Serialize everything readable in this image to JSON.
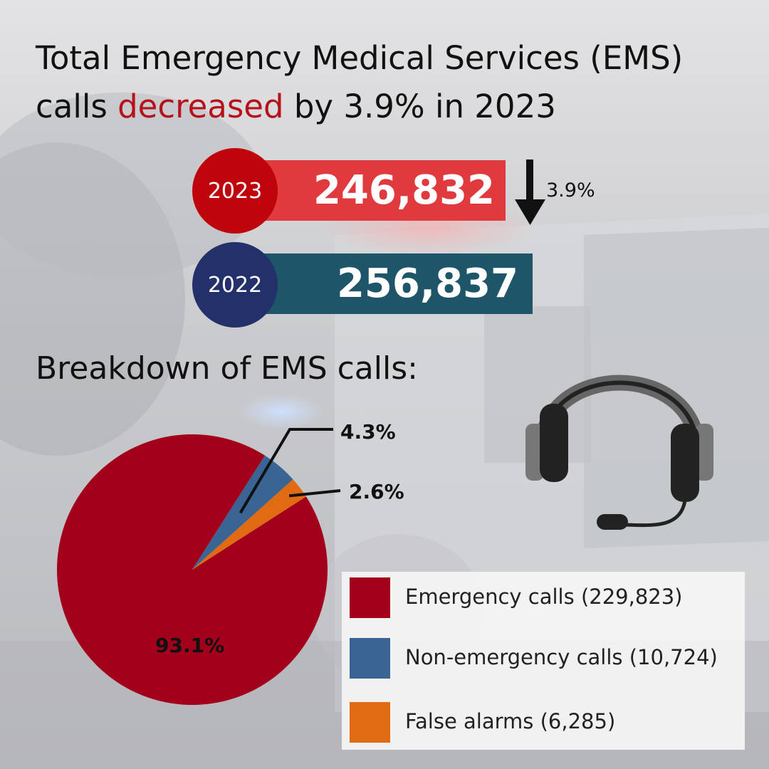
{
  "header": {
    "title_pre": "Total Emergency Medical Services (EMS) calls ",
    "title_highlight": "decreased",
    "title_post": " by 3.9% in 2023"
  },
  "comparison": {
    "items": [
      {
        "year": "2023",
        "value": "246,832",
        "bar_color": "#e03a3e",
        "circle_color": "#c0040c"
      },
      {
        "year": "2022",
        "value": "256,837",
        "bar_color": "#1e5568",
        "circle_color": "#24306a"
      }
    ],
    "change_label": "3.9%",
    "change_direction": "down"
  },
  "breakdown": {
    "heading": "Breakdown of EMS calls:"
  },
  "chart_data": {
    "type": "pie",
    "slices": [
      {
        "name": "Emergency calls",
        "value": 229823,
        "percent_label": "93.1%",
        "legend": "Emergency calls (229,823)",
        "color": "#a3001c"
      },
      {
        "name": "Non-emergency calls",
        "value": 10724,
        "percent_label": "4.3%",
        "legend": "Non-emergency calls (10,724)",
        "color": "#3a6494"
      },
      {
        "name": "False alarms",
        "value": 6285,
        "percent_label": "2.6%",
        "legend": "False alarms (6,285)",
        "color": "#e06b12"
      }
    ],
    "legend_position": "bottom-right"
  },
  "icons": {
    "headset": "headset-icon",
    "arrow": "arrow-down-icon"
  }
}
